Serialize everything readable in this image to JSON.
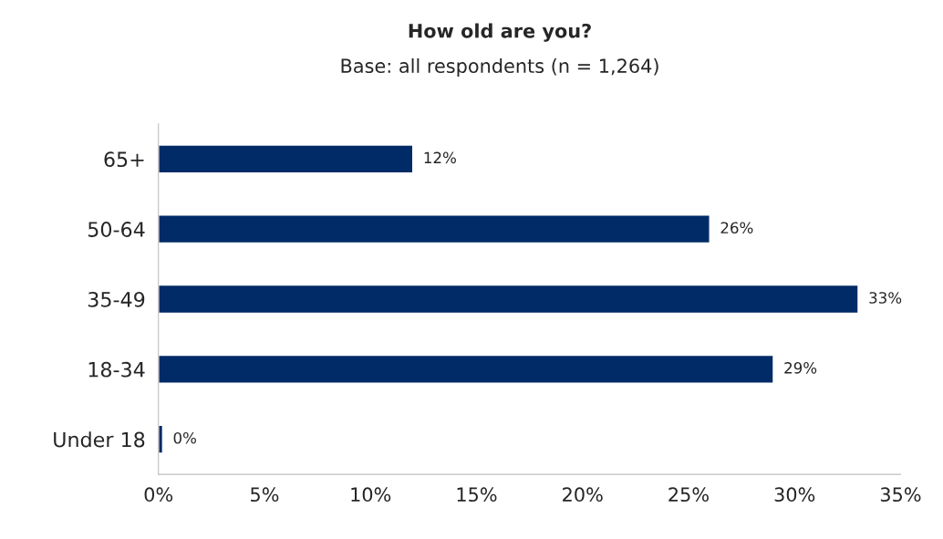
{
  "chart_data": {
    "type": "bar",
    "orientation": "horizontal",
    "title": "How old are you?",
    "subtitle": "Base: all respondents (n = 1,264)",
    "categories": [
      "65+",
      "50-64",
      "35-49",
      "18-34",
      "Under 18"
    ],
    "values": [
      12,
      26,
      33,
      29,
      0.2
    ],
    "value_labels": [
      "12%",
      "26%",
      "33%",
      "29%",
      "0%"
    ],
    "color": "#002b66",
    "xlim": [
      0,
      35
    ],
    "xticks": [
      {
        "value": 0,
        "label": "0%"
      },
      {
        "value": 5,
        "label": "5%"
      },
      {
        "value": 10,
        "label": "10%"
      },
      {
        "value": 15,
        "label": "15%"
      },
      {
        "value": 20,
        "label": "20%"
      },
      {
        "value": 25,
        "label": "25%"
      },
      {
        "value": 30,
        "label": "30%"
      },
      {
        "value": 35,
        "label": "35%"
      }
    ],
    "grid": false,
    "legend": false
  }
}
